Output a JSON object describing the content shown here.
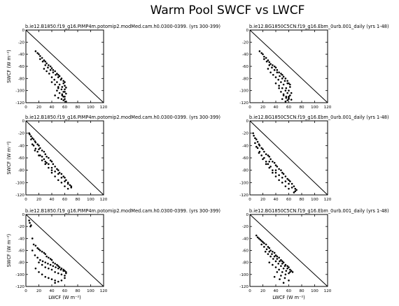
{
  "figure": {
    "title": "Warm Pool SWCF vs LWCF"
  },
  "chart_data": [
    {
      "type": "scatter",
      "title": "b.ie12.B1850.f19_g16.PIMP4m.potomip2.modMed.cam.h0.0300-0399. (yrs 300-399)",
      "xlabel": "",
      "ylabel": "SWCF (W m⁻²)",
      "xlim": [
        0,
        120
      ],
      "ylim": [
        -120,
        0
      ],
      "xticks": [
        "0",
        "20",
        "40",
        "60",
        "80",
        "100",
        "120"
      ],
      "yticks": [
        "0",
        "-20",
        "-40",
        "-60",
        "-80",
        "-100",
        "-120"
      ],
      "reference_line": {
        "x": [
          0,
          120
        ],
        "y": [
          0,
          -120
        ]
      },
      "x": [
        15,
        18,
        20,
        22,
        25,
        28,
        30,
        32,
        35,
        38,
        40,
        42,
        45,
        48,
        50,
        52,
        55,
        58,
        60,
        22,
        26,
        30,
        34,
        38,
        42,
        46,
        50,
        54,
        58,
        60,
        62,
        28,
        32,
        36,
        40,
        44,
        48,
        52,
        56,
        60,
        40,
        45,
        50,
        55,
        58,
        62,
        48,
        52,
        56,
        60,
        50,
        55,
        58,
        60,
        62,
        56,
        58,
        60,
        45,
        50
      ],
      "y": [
        -35,
        -38,
        -40,
        -43,
        -46,
        -50,
        -52,
        -55,
        -58,
        -60,
        -63,
        -66,
        -68,
        -72,
        -74,
        -76,
        -80,
        -84,
        -86,
        -48,
        -52,
        -58,
        -62,
        -66,
        -70,
        -74,
        -78,
        -82,
        -88,
        -92,
        -95,
        -64,
        -68,
        -72,
        -78,
        -82,
        -86,
        -90,
        -94,
        -98,
        -86,
        -90,
        -94,
        -98,
        -102,
        -105,
        -100,
        -104,
        -108,
        -110,
        -112,
        -114,
        -116,
        -114,
        -118,
        -106,
        -110,
        -102,
        -108,
        -96
      ]
    },
    {
      "type": "scatter",
      "title": "b.ie12.BG1850C5CN.f19_g16.Ebm_0urb.001_daily (yrs 1-48)",
      "xlabel": "",
      "ylabel": "",
      "xlim": [
        0,
        120
      ],
      "ylim": [
        -120,
        0
      ],
      "xticks": [
        "0",
        "20",
        "40",
        "60",
        "80",
        "100",
        "120"
      ],
      "yticks": [
        "0",
        "-20",
        "-40",
        "-60",
        "-80",
        "-100",
        "-120"
      ],
      "reference_line": {
        "x": [
          0,
          120
        ],
        "y": [
          0,
          -120
        ]
      },
      "x": [
        15,
        18,
        20,
        22,
        25,
        28,
        30,
        32,
        35,
        38,
        40,
        42,
        45,
        48,
        50,
        52,
        55,
        58,
        60,
        62,
        22,
        26,
        30,
        34,
        38,
        42,
        46,
        50,
        54,
        58,
        62,
        28,
        32,
        36,
        40,
        44,
        48,
        52,
        56,
        60,
        64,
        40,
        45,
        50,
        55,
        58,
        62,
        48,
        52,
        56,
        60,
        64,
        50,
        55,
        58,
        60,
        45,
        52,
        56,
        60
      ],
      "y": [
        -35,
        -38,
        -40,
        -44,
        -46,
        -50,
        -53,
        -56,
        -58,
        -60,
        -62,
        -66,
        -70,
        -72,
        -74,
        -77,
        -80,
        -84,
        -88,
        -90,
        -48,
        -52,
        -58,
        -62,
        -66,
        -70,
        -76,
        -80,
        -84,
        -88,
        -94,
        -64,
        -70,
        -74,
        -78,
        -82,
        -86,
        -90,
        -96,
        -100,
        -104,
        -88,
        -92,
        -96,
        -100,
        -104,
        -108,
        -102,
        -106,
        -110,
        -112,
        -115,
        -114,
        -118,
        -116,
        -110,
        -96,
        -108,
        -112,
        -114
      ]
    },
    {
      "type": "scatter",
      "title": "b.ie12.B1850.f19_g16.PIMP4m.potomip2.modMed.cam.h0.0300-0399. (yrs 300-399)",
      "xlabel": "",
      "ylabel": "SWCF (W m⁻²)",
      "xlim": [
        0,
        120
      ],
      "ylim": [
        -120,
        0
      ],
      "xticks": [
        "0",
        "20",
        "40",
        "60",
        "80",
        "100",
        "120"
      ],
      "yticks": [
        "0",
        "-20",
        "-40",
        "-60",
        "-80",
        "-100",
        "-120"
      ],
      "reference_line": {
        "x": [
          0,
          120
        ],
        "y": [
          0,
          -120
        ]
      },
      "x": [
        5,
        6,
        8,
        10,
        12,
        14,
        15,
        18,
        20,
        22,
        25,
        28,
        30,
        32,
        35,
        38,
        40,
        42,
        45,
        48,
        50,
        52,
        55,
        58,
        60,
        62,
        65,
        68,
        70,
        8,
        12,
        15,
        18,
        22,
        25,
        28,
        32,
        35,
        40,
        45,
        50,
        55,
        60,
        65,
        70,
        10,
        14,
        20,
        25,
        30,
        35,
        40,
        45,
        50,
        55,
        60,
        65,
        20,
        30,
        40
      ],
      "y": [
        -20,
        -22,
        -25,
        -28,
        -30,
        -33,
        -35,
        -38,
        -40,
        -44,
        -48,
        -50,
        -54,
        -58,
        -60,
        -64,
        -66,
        -70,
        -74,
        -78,
        -80,
        -84,
        -86,
        -90,
        -92,
        -96,
        -100,
        -104,
        -106,
        -30,
        -40,
        -45,
        -50,
        -56,
        -58,
        -62,
        -68,
        -70,
        -76,
        -82,
        -86,
        -92,
        -98,
        -102,
        -108,
        -38,
        -48,
        -56,
        -64,
        -70,
        -76,
        -84,
        -90,
        -96,
        -100,
        -106,
        -110,
        -46,
        -66,
        -80
      ]
    },
    {
      "type": "scatter",
      "title": "b.ie12.BG1850C5CN.f19_g16.Ebm_0urb.001_daily (yrs 1-48)",
      "xlabel": "",
      "ylabel": "",
      "xlim": [
        0,
        120
      ],
      "ylim": [
        -120,
        0
      ],
      "xticks": [
        "0",
        "20",
        "40",
        "60",
        "80",
        "100",
        "120"
      ],
      "yticks": [
        "0",
        "-20",
        "-40",
        "-60",
        "-80",
        "-100",
        "-120"
      ],
      "reference_line": {
        "x": [
          0,
          120
        ],
        "y": [
          0,
          -120
        ]
      },
      "x": [
        5,
        6,
        8,
        10,
        12,
        14,
        15,
        18,
        20,
        22,
        25,
        28,
        30,
        32,
        35,
        38,
        40,
        42,
        45,
        48,
        50,
        52,
        55,
        58,
        60,
        62,
        65,
        68,
        70,
        72,
        8,
        12,
        15,
        18,
        22,
        25,
        28,
        32,
        35,
        40,
        45,
        50,
        55,
        60,
        65,
        70,
        10,
        14,
        20,
        25,
        30,
        35,
        40,
        45,
        50,
        55,
        60,
        68,
        30,
        40
      ],
      "y": [
        -20,
        -24,
        -28,
        -30,
        -34,
        -38,
        -40,
        -44,
        -46,
        -50,
        -54,
        -56,
        -58,
        -62,
        -66,
        -68,
        -72,
        -74,
        -78,
        -80,
        -84,
        -86,
        -90,
        -94,
        -96,
        -98,
        -102,
        -106,
        -110,
        -112,
        -36,
        -44,
        -50,
        -56,
        -60,
        -66,
        -70,
        -74,
        -80,
        -84,
        -88,
        -92,
        -98,
        -102,
        -108,
        -114,
        -42,
        -52,
        -62,
        -70,
        -76,
        -84,
        -90,
        -96,
        -100,
        -106,
        -110,
        -116,
        -66,
        -80
      ]
    },
    {
      "type": "scatter",
      "title": "b.ie12.B1850.f19_g16.PIMP4m.potomip2.modMed.cam.h0.0300-0399. (yrs 300-399)",
      "xlabel": "LWCF (W m⁻²)",
      "ylabel": "SWCF (W m⁻²)",
      "xlim": [
        0,
        120
      ],
      "ylim": [
        -120,
        0
      ],
      "xticks": [
        "0",
        "20",
        "40",
        "60",
        "80",
        "100",
        "120"
      ],
      "yticks": [
        "0",
        "-20",
        "-40",
        "-60",
        "-80",
        "-100",
        "-120"
      ],
      "reference_line": {
        "x": [
          0,
          120
        ],
        "y": [
          0,
          -120
        ]
      },
      "x": [
        5,
        6,
        8,
        7,
        10,
        12,
        15,
        18,
        20,
        22,
        25,
        28,
        30,
        32,
        35,
        38,
        40,
        42,
        45,
        48,
        50,
        52,
        55,
        58,
        60,
        62,
        10,
        14,
        18,
        22,
        26,
        30,
        34,
        38,
        42,
        46,
        50,
        54,
        58,
        62,
        20,
        25,
        30,
        35,
        40,
        45,
        50,
        55,
        60,
        15,
        20,
        25,
        30,
        35,
        40,
        45,
        50,
        55,
        60,
        45
      ],
      "y": [
        -10,
        -14,
        -18,
        -20,
        -40,
        -50,
        -52,
        -56,
        -58,
        -60,
        -62,
        -64,
        -66,
        -70,
        -72,
        -74,
        -76,
        -80,
        -82,
        -84,
        -86,
        -88,
        -90,
        -92,
        -94,
        -96,
        -60,
        -68,
        -72,
        -76,
        -78,
        -80,
        -82,
        -84,
        -86,
        -88,
        -90,
        -92,
        -94,
        -98,
        -80,
        -84,
        -88,
        -90,
        -92,
        -96,
        -98,
        -100,
        -102,
        -90,
        -96,
        -100,
        -104,
        -106,
        -108,
        -110,
        -112,
        -110,
        -106,
        -114
      ]
    },
    {
      "type": "scatter",
      "title": "b.ie12.BG1850C5CN.f19_g16.Ebm_0urb.001_daily (yrs 1-48)",
      "xlabel": "LWCF (W m⁻²)",
      "ylabel": "",
      "xlim": [
        0,
        120
      ],
      "ylim": [
        -120,
        0
      ],
      "xticks": [
        "0",
        "20",
        "40",
        "60",
        "80",
        "100",
        "120"
      ],
      "yticks": [
        "0",
        "-20",
        "-40",
        "-60",
        "-80",
        "-100",
        "-120"
      ],
      "reference_line": {
        "x": [
          0,
          120
        ],
        "y": [
          0,
          -120
        ]
      },
      "x": [
        10,
        12,
        14,
        16,
        18,
        20,
        22,
        25,
        28,
        30,
        32,
        35,
        38,
        40,
        42,
        45,
        48,
        50,
        52,
        55,
        58,
        60,
        62,
        64,
        66,
        18,
        22,
        26,
        30,
        34,
        38,
        42,
        46,
        50,
        54,
        58,
        62,
        24,
        28,
        32,
        36,
        40,
        44,
        48,
        52,
        56,
        60,
        30,
        35,
        40,
        45,
        50,
        55,
        42,
        48,
        54,
        60,
        38,
        46,
        52
      ],
      "y": [
        -35,
        -38,
        -40,
        -42,
        -44,
        -46,
        -48,
        -50,
        -54,
        -56,
        -60,
        -62,
        -64,
        -68,
        -70,
        -72,
        -76,
        -78,
        -80,
        -84,
        -86,
        -88,
        -92,
        -94,
        -96,
        -50,
        -54,
        -58,
        -62,
        -66,
        -70,
        -74,
        -78,
        -82,
        -86,
        -90,
        -96,
        -62,
        -66,
        -70,
        -74,
        -78,
        -82,
        -86,
        -90,
        -94,
        -98,
        -80,
        -84,
        -88,
        -92,
        -96,
        -100,
        -96,
        -102,
        -106,
        -110,
        -104,
        -108,
        -114
      ]
    }
  ]
}
